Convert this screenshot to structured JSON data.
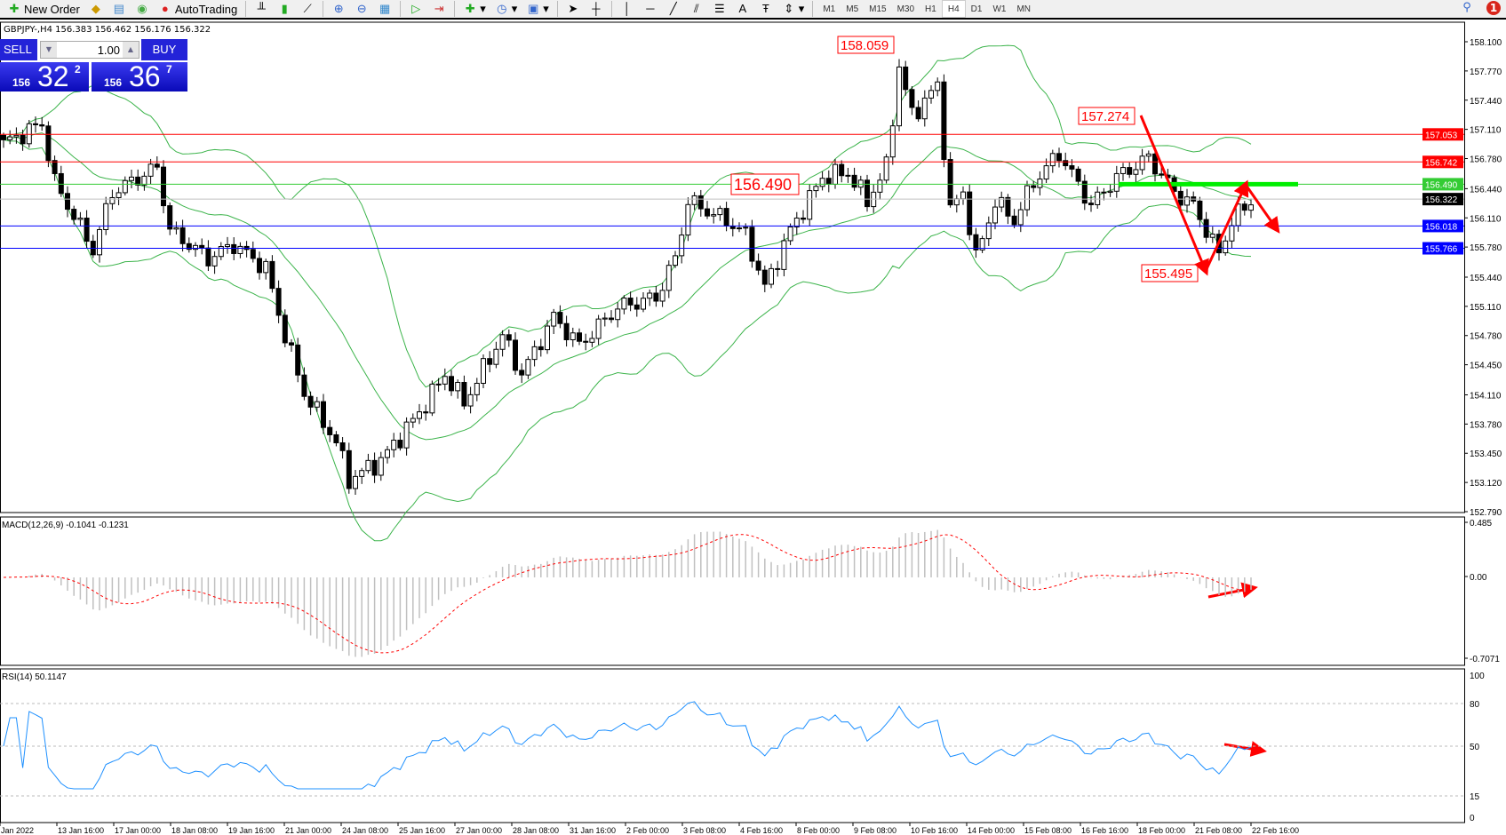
{
  "toolbar": {
    "new_order": "New Order",
    "autotrading": "AutoTrading",
    "timeframes": [
      "M1",
      "M5",
      "M15",
      "M30",
      "H1",
      "H4",
      "D1",
      "W1",
      "MN"
    ],
    "active_timeframe": "H4",
    "notifications": "1"
  },
  "chart": {
    "header": "GBPJPY-,H4  156.383 156.462 156.176 156.322",
    "symbol": "GBPJPY-",
    "timeframe": "H4"
  },
  "trade": {
    "sell_label": "SELL",
    "buy_label": "BUY",
    "lot": "1.00",
    "sell_big": "156",
    "sell_main": "32",
    "sell_sup": "2",
    "buy_big": "156",
    "buy_main": "36",
    "buy_sup": "7"
  },
  "price_axis": [
    "158.100",
    "157.770",
    "157.440",
    "157.110",
    "156.780",
    "156.440",
    "156.110",
    "155.780",
    "155.440",
    "155.110",
    "154.780",
    "154.450",
    "154.110",
    "153.780",
    "153.450",
    "153.120",
    "152.790"
  ],
  "hlines": [
    {
      "price": 157.053,
      "label": "157.053",
      "color": "#ff0000"
    },
    {
      "price": 156.742,
      "label": "156.742",
      "color": "#ff0000"
    },
    {
      "price": 156.49,
      "label": "156.490",
      "color": "#33cc33"
    },
    {
      "price": 156.322,
      "label": "156.322",
      "color": "#000000",
      "line": "#c0c0c0"
    },
    {
      "price": 156.018,
      "label": "156.018",
      "color": "#0000ff"
    },
    {
      "price": 155.766,
      "label": "155.766",
      "color": "#0000ff"
    }
  ],
  "annotations": [
    "158.059",
    "157.274",
    "156.490",
    "155.495"
  ],
  "price_path": [
    [
      0,
      156.95
    ],
    [
      6,
      157.17
    ],
    [
      8,
      156.51
    ],
    [
      14,
      155.75
    ],
    [
      17,
      156.4
    ],
    [
      24,
      156.68
    ],
    [
      26,
      155.97
    ],
    [
      32,
      155.65
    ],
    [
      36,
      155.81
    ],
    [
      41,
      155.54
    ],
    [
      44,
      154.78
    ],
    [
      47,
      154.13
    ],
    [
      52,
      153.58
    ],
    [
      54,
      153.15
    ],
    [
      59,
      153.37
    ],
    [
      65,
      153.91
    ],
    [
      69,
      154.34
    ],
    [
      72,
      154.02
    ],
    [
      78,
      154.78
    ],
    [
      81,
      154.34
    ],
    [
      86,
      154.99
    ],
    [
      90,
      154.67
    ],
    [
      96,
      155.1
    ],
    [
      102,
      155.21
    ],
    [
      105,
      155.65
    ],
    [
      107,
      156.3
    ],
    [
      113,
      156.08
    ],
    [
      116,
      155.92
    ],
    [
      119,
      155.32
    ],
    [
      123,
      155.97
    ],
    [
      128,
      156.57
    ],
    [
      132,
      156.62
    ],
    [
      135,
      156.3
    ],
    [
      138,
      156.68
    ],
    [
      140,
      157.82
    ],
    [
      142,
      157.27
    ],
    [
      146,
      157.6
    ],
    [
      148,
      156.19
    ],
    [
      150,
      156.4
    ],
    [
      152,
      155.65
    ],
    [
      155,
      156.3
    ],
    [
      158,
      156.08
    ],
    [
      161,
      156.51
    ],
    [
      165,
      156.84
    ],
    [
      170,
      156.25
    ],
    [
      174,
      156.57
    ],
    [
      179,
      156.79
    ],
    [
      183,
      156.4
    ],
    [
      186,
      156.25
    ],
    [
      190,
      155.7
    ],
    [
      192,
      156.08
    ],
    [
      195,
      156.3
    ]
  ],
  "macd": {
    "label": "MACD(12,26,9) -0.1041 -0.1231",
    "axis": [
      "0.485",
      "0.00",
      "-0.7071"
    ]
  },
  "rsi": {
    "label": "RSI(14) 50.1147",
    "axis": [
      "100",
      "80",
      "50",
      "15",
      "0"
    ]
  },
  "time_axis": [
    "Jan 2022",
    "13 Jan 16:00",
    "17 Jan 00:00",
    "18 Jan 08:00",
    "19 Jan 16:00",
    "21 Jan 00:00",
    "24 Jan 08:00",
    "25 Jan 16:00",
    "27 Jan 00:00",
    "28 Jan 08:00",
    "31 Jan 16:00",
    "2 Feb 00:00",
    "3 Feb 08:00",
    "4 Feb 16:00",
    "8 Feb 00:00",
    "9 Feb 08:00",
    "10 Feb 16:00",
    "14 Feb 00:00",
    "15 Feb 08:00",
    "16 Feb 16:00",
    "18 Feb 00:00",
    "21 Feb 08:00",
    "22 Feb 16:00"
  ]
}
